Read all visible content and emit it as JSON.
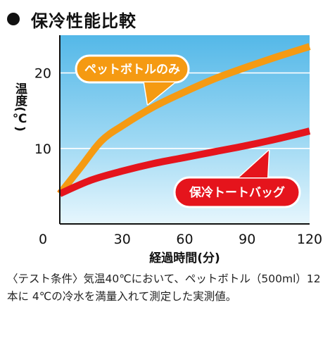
{
  "title": "保冷性能比較",
  "chart_data": {
    "type": "line",
    "xlabel": "経過時間(分)",
    "ylabel": "温度(℃)",
    "xlim": [
      0,
      120
    ],
    "ylim": [
      0,
      25
    ],
    "x_ticks": [
      "0",
      "30",
      "60",
      "90",
      "120"
    ],
    "y_ticks": [
      10,
      20
    ],
    "grid": true,
    "series": [
      {
        "name": "ペットボトルのみ",
        "color": "#f59a12",
        "x": [
          0,
          10,
          20,
          30,
          45,
          60,
          75,
          90,
          105,
          120
        ],
        "y": [
          4,
          7.5,
          11,
          13,
          15.5,
          17.5,
          19.3,
          20.8,
          22.2,
          23.5
        ]
      },
      {
        "name": "保冷トートバッグ",
        "color": "#e5141c",
        "x": [
          0,
          15,
          30,
          45,
          60,
          75,
          90,
          105,
          120
        ],
        "y": [
          4,
          5.8,
          7,
          8,
          8.8,
          9.6,
          10.4,
          11.3,
          12.3
        ]
      }
    ]
  },
  "note": "〈テスト条件〉気温40℃において、ペットボトル（500ml）12本に 4℃の冷水を満量入れて測定した実測値。"
}
